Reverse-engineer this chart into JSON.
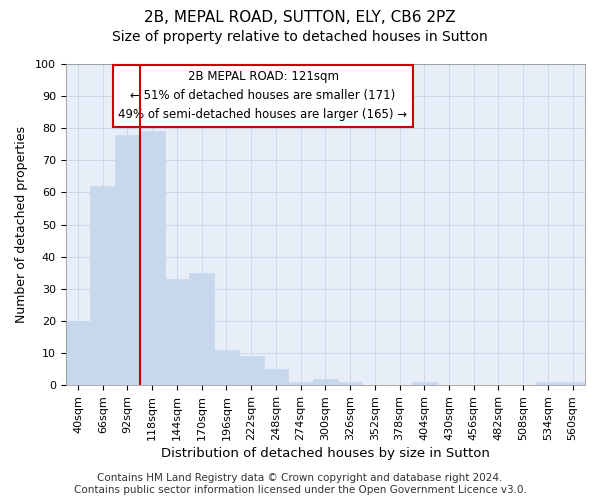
{
  "title_line1": "2B, MEPAL ROAD, SUTTON, ELY, CB6 2PZ",
  "title_line2": "Size of property relative to detached houses in Sutton",
  "xlabel": "Distribution of detached houses by size in Sutton",
  "ylabel": "Number of detached properties",
  "categories": [
    "40sqm",
    "66sqm",
    "92sqm",
    "118sqm",
    "144sqm",
    "170sqm",
    "196sqm",
    "222sqm",
    "248sqm",
    "274sqm",
    "300sqm",
    "326sqm",
    "352sqm",
    "378sqm",
    "404sqm",
    "430sqm",
    "456sqm",
    "482sqm",
    "508sqm",
    "534sqm",
    "560sqm"
  ],
  "values": [
    20,
    62,
    78,
    79,
    33,
    35,
    11,
    9,
    5,
    1,
    2,
    1,
    0,
    0,
    1,
    0,
    0,
    0,
    0,
    1,
    1
  ],
  "bar_color": "#c8d8ec",
  "bar_edge_color": "#c8d8ec",
  "bar_width": 1.0,
  "vline_x_index": 2.5,
  "vline_color": "#cc0000",
  "ylim": [
    0,
    100
  ],
  "yticks": [
    0,
    10,
    20,
    30,
    40,
    50,
    60,
    70,
    80,
    90,
    100
  ],
  "annotation_box_text": "2B MEPAL ROAD: 121sqm\n← 51% of detached houses are smaller (171)\n49% of semi-detached houses are larger (165) →",
  "grid_color": "#c8d4e8",
  "background_color": "#ffffff",
  "plot_bg_color": "#e8eef8",
  "footer_line1": "Contains HM Land Registry data © Crown copyright and database right 2024.",
  "footer_line2": "Contains public sector information licensed under the Open Government Licence v3.0.",
  "title_fontsize": 11,
  "subtitle_fontsize": 10,
  "xlabel_fontsize": 9.5,
  "ylabel_fontsize": 9,
  "tick_fontsize": 8,
  "annotation_fontsize": 8.5,
  "footer_fontsize": 7.5
}
